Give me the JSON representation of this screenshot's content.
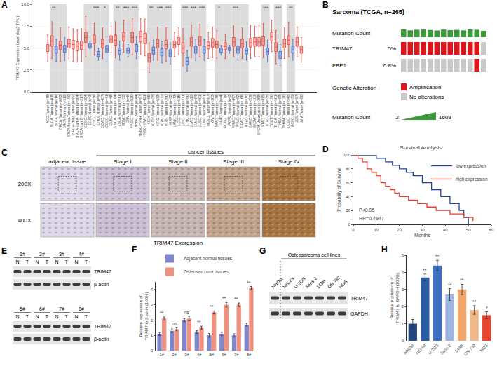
{
  "chart_data": [
    {
      "panel": "A",
      "type": "box",
      "y_label": "TRIM47 Expression Level (log2 TPM)",
      "categories": [
        "ACC.Tumor (n=79)",
        "BLCA.Tumor (n=408)",
        "BLCA.Normal (n=19)",
        "BRCA.Tumor (n=1093)",
        "BRCA.Normal (n=112)",
        "BRCA-Basal.Tumor (n=190)",
        "BRCA-Her2.Tumor (n=82)",
        "BRCA-LumA.Tumor (n=564)",
        "BRCA-LumB.Tumor (n=217)",
        "CESC.Tumor (n=304)",
        "CESC.Normal (n=3)",
        "CHOL.Tumor (n=36)",
        "CHOL.Normal (n=9)",
        "COAD.Tumor (n=457)",
        "COAD.Normal (n=41)",
        "DLBC.Tumor (n=48)",
        "ESCA.Tumor (n=184)",
        "ESCA.Normal (n=11)",
        "GBM.Tumor (n=153)",
        "GBM.Normal (n=5)",
        "HNSC.Tumor (n=520)",
        "HNSC.Normal (n=44)",
        "HNSC-HPV+.Tumor (n=97)",
        "HNSC-HPV-.Tumor (n=421)",
        "KICH.Tumor (n=66)",
        "KICH.Normal (n=25)",
        "KIRC.Tumor (n=533)",
        "KIRC.Normal (n=72)",
        "KIRP.Tumor (n=290)",
        "KIRP.Normal (n=32)",
        "LAML.Tumor (n=173)",
        "LGG.Tumor (n=516)",
        "LIHC.Tumor (n=371)",
        "LIHC.Normal (n=50)",
        "LUAD.Tumor (n=515)",
        "LUAD.Normal (n=59)",
        "LUSC.Tumor (n=501)",
        "LUSC.Normal (n=51)",
        "MESO.Tumor (n=87)",
        "OV.Tumor (n=303)",
        "PAAD.Tumor (n=178)",
        "PAAD.Normal (n=4)",
        "PCPG.Tumor (n=179)",
        "PCPG.Normal (n=3)",
        "PRAD.Tumor (n=497)",
        "PRAD.Normal (n=52)",
        "READ.Tumor (n=166)",
        "READ.Normal (n=10)",
        "SARC.Tumor (n=259)",
        "SKCM.Tumor (n=103)",
        "SKCM.Metastasis (n=368)",
        "STAD.Tumor (n=415)",
        "STAD.Normal (n=35)",
        "TGCT.Tumor (n=150)",
        "THCA.Tumor (n=501)",
        "THCA.Normal (n=59)",
        "THYM.Tumor (n=120)",
        "UCEC.Tumor (n=545)",
        "UCEC.Normal (n=35)",
        "UCS.Tumor (n=57)",
        "UVM.Tumor (n=80)"
      ],
      "lower": [
        3.5,
        3.8,
        3.5,
        3.5,
        3.6,
        3.8,
        3.5,
        3.4,
        3.5,
        4.0,
        4.8,
        4.2,
        3.6,
        3.8,
        3.5,
        4.5,
        3.9,
        3.6,
        4.5,
        4.0,
        4.2,
        3.8,
        4.3,
        4.1,
        2.2,
        3.6,
        3.6,
        3.3,
        3.5,
        3.2,
        4.0,
        4.3,
        3.0,
        2.4,
        3.9,
        3.6,
        4.0,
        3.6,
        3.8,
        3.9,
        3.8,
        4.2,
        3.8,
        4.4,
        4.0,
        3.6,
        3.8,
        3.6,
        3.8,
        4.0,
        4.0,
        3.9,
        3.4,
        4.6,
        3.2,
        3.0,
        3.8,
        4.0,
        3.6,
        4.0,
        3.4
      ],
      "q1": [
        4.6,
        5.2,
        4.4,
        4.8,
        4.5,
        5.0,
        4.9,
        4.7,
        4.8,
        5.6,
        5.0,
        5.5,
        4.0,
        5.0,
        4.5,
        5.6,
        5.3,
        4.3,
        5.8,
        4.4,
        5.6,
        4.6,
        5.7,
        5.5,
        3.4,
        4.3,
        5.0,
        4.1,
        4.9,
        4.0,
        5.0,
        5.4,
        4.4,
        3.1,
        5.2,
        4.4,
        5.3,
        4.4,
        4.9,
        5.1,
        5.0,
        4.5,
        4.8,
        4.7,
        5.2,
        4.4,
        5.0,
        4.3,
        5.1,
        5.2,
        5.2,
        5.3,
        4.2,
        5.8,
        4.6,
        3.8,
        5.0,
        5.4,
        4.4,
        5.2,
        4.4
      ],
      "median": [
        5.0,
        5.8,
        4.8,
        5.3,
        4.9,
        5.5,
        5.4,
        5.2,
        5.3,
        6.2,
        5.2,
        6.0,
        4.3,
        5.5,
        4.9,
        6.0,
        5.9,
        4.7,
        6.3,
        4.7,
        6.2,
        5.0,
        6.3,
        6.1,
        3.9,
        4.7,
        5.5,
        4.5,
        5.4,
        4.4,
        5.4,
        5.8,
        5.0,
        3.5,
        5.7,
        4.8,
        5.8,
        4.8,
        5.3,
        5.6,
        5.4,
        4.8,
        5.2,
        4.9,
        5.7,
        4.8,
        5.5,
        4.7,
        5.6,
        5.7,
        5.7,
        5.8,
        4.6,
        6.3,
        5.1,
        4.2,
        5.5,
        5.9,
        4.8,
        5.7,
        4.8
      ],
      "q3": [
        5.4,
        6.4,
        5.2,
        5.8,
        5.3,
        6.0,
        5.9,
        5.7,
        5.8,
        6.8,
        5.5,
        6.5,
        4.6,
        6.0,
        5.3,
        6.4,
        6.5,
        5.0,
        6.8,
        5.0,
        6.8,
        5.4,
        6.9,
        6.7,
        4.4,
        5.1,
        6.0,
        4.9,
        5.9,
        4.8,
        5.8,
        6.2,
        5.6,
        3.9,
        6.2,
        5.2,
        6.3,
        5.2,
        5.7,
        6.1,
        5.8,
        5.0,
        5.6,
        5.1,
        6.2,
        5.2,
        6.0,
        5.0,
        6.1,
        6.2,
        6.2,
        6.3,
        5.0,
        6.8,
        5.6,
        4.6,
        6.0,
        6.4,
        5.2,
        6.2,
        5.2
      ],
      "upper": [
        6.5,
        8.0,
        6.0,
        7.3,
        6.2,
        7.4,
        7.2,
        7.1,
        7.2,
        8.6,
        5.7,
        7.8,
        5.0,
        7.3,
        6.3,
        7.5,
        8.0,
        5.8,
        8.2,
        5.4,
        8.4,
        6.3,
        8.4,
        8.3,
        5.6,
        5.9,
        7.4,
        5.8,
        7.3,
        5.6,
        6.8,
        7.3,
        7.2,
        4.7,
        7.6,
        6.0,
        7.7,
        6.0,
        6.8,
        7.4,
        7.0,
        5.3,
        6.6,
        5.3,
        7.5,
        6.0,
        7.3,
        5.7,
        7.6,
        7.5,
        7.6,
        7.8,
        5.9,
        8.2,
        7.0,
        5.4,
        7.3,
        7.9,
        6.0,
        7.4,
        6.2
      ],
      "colors": [
        "#e8382f",
        "#e8382f",
        "#3a5fcd",
        "#e8382f",
        "#3a5fcd",
        "#e8382f",
        "#e8382f",
        "#e8382f",
        "#e8382f",
        "#e8382f",
        "#3a5fcd",
        "#e8382f",
        "#3a5fcd",
        "#e8382f",
        "#3a5fcd",
        "#e8382f",
        "#e8382f",
        "#3a5fcd",
        "#e8382f",
        "#3a5fcd",
        "#e8382f",
        "#3a5fcd",
        "#e8382f",
        "#e8382f",
        "#e8382f",
        "#3a5fcd",
        "#e8382f",
        "#3a5fcd",
        "#e8382f",
        "#3a5fcd",
        "#e8382f",
        "#e8382f",
        "#e8382f",
        "#3a5fcd",
        "#e8382f",
        "#3a5fcd",
        "#e8382f",
        "#3a5fcd",
        "#e8382f",
        "#e8382f",
        "#e8382f",
        "#3a5fcd",
        "#e8382f",
        "#3a5fcd",
        "#e8382f",
        "#3a5fcd",
        "#e8382f",
        "#3a5fcd",
        "#e8382f",
        "#e8382f",
        "#e8382f",
        "#e8382f",
        "#3a5fcd",
        "#e8382f",
        "#e8382f",
        "#3a5fcd",
        "#e8382f",
        "#e8382f",
        "#3a5fcd",
        "#e8382f",
        "#e8382f"
      ],
      "ylim": [
        0,
        10
      ],
      "yticks": [
        {
          "value": 0,
          "label": "0.0"
        },
        {
          "value": 2.5,
          "label": "2.5"
        },
        {
          "value": 5,
          "label": "5.0"
        },
        {
          "value": 7.5,
          "label": "7.5"
        },
        {
          "value": 10,
          "label": "10.0"
        }
      ],
      "grid": true,
      "annotations": [
        {
          "category": "BLCA.Tumor (n=408)",
          "text": "**"
        },
        {
          "category": "CHOL.Tumor (n=36)",
          "text": "***"
        },
        {
          "category": "COAD.Tumor (n=457)",
          "text": "*"
        },
        {
          "category": "ESCA.Tumor (n=184)",
          "text": "**"
        },
        {
          "category": "GBM.Tumor (n=153)",
          "text": "***"
        },
        {
          "category": "HNSC.Tumor (n=520)",
          "text": "***"
        },
        {
          "category": "KICH.Tumor (n=66)",
          "text": "**"
        },
        {
          "category": "KIRC.Tumor (n=533)",
          "text": "***"
        },
        {
          "category": "KIRP.Tumor (n=290)",
          "text": "***"
        },
        {
          "category": "LIHC.Tumor (n=371)",
          "text": "***"
        },
        {
          "category": "LUAD.Tumor (n=515)",
          "text": "***"
        },
        {
          "category": "LUSC.Tumor (n=501)",
          "text": "***"
        },
        {
          "category": "PAAD.Tumor (n=178)",
          "text": "*"
        },
        {
          "category": "PRAD.Tumor (n=497)",
          "text": "***"
        },
        {
          "category": "STAD.Tumor (n=415)",
          "text": "***"
        },
        {
          "category": "THCA.Tumor (n=501)",
          "text": "***"
        },
        {
          "category": "UCEC.Tumor (n=545)",
          "text": "**"
        }
      ]
    },
    {
      "panel": "D",
      "type": "line",
      "title": "Survival Analysis",
      "x_label": "Months",
      "y_label": "Probability of Survival",
      "xlim": [
        0,
        60
      ],
      "xticks": [
        0,
        10,
        20,
        30,
        40,
        50,
        60
      ],
      "ylim": [
        0,
        100
      ],
      "yticks": [
        0,
        20,
        40,
        60,
        80,
        100
      ],
      "line_style": "step",
      "legend": "top right",
      "series": [
        {
          "name": "low expression",
          "color": "#1f3f99",
          "x": [
            0,
            10,
            14,
            17,
            20,
            23,
            26,
            30,
            34,
            38,
            42,
            46,
            48,
            50
          ],
          "values": [
            100,
            95,
            90,
            85,
            80,
            75,
            70,
            60,
            50,
            40,
            30,
            20,
            10,
            0
          ]
        },
        {
          "name": "high expression",
          "color": "#e8402f",
          "x": [
            0,
            2,
            4,
            6,
            8,
            10,
            12,
            14,
            16,
            18,
            20,
            24,
            28,
            32,
            36,
            42,
            48,
            52
          ],
          "values": [
            100,
            95,
            90,
            80,
            75,
            70,
            60,
            55,
            50,
            45,
            40,
            35,
            30,
            25,
            20,
            15,
            10,
            5
          ]
        }
      ],
      "annotations": [
        {
          "text": "P<0.05"
        },
        {
          "text": "HR=0.4947"
        }
      ]
    },
    {
      "panel": "F",
      "type": "bar",
      "y_label": "Relative expression of TRIM47 to β-actin (100%)",
      "categories": [
        "1#",
        "2#",
        "3#",
        "4#",
        "5#",
        "6#",
        "7#",
        "8#"
      ],
      "series": [
        {
          "name": "Adjacent normal tissues",
          "color": "#7f86cc",
          "values": [
            1.1,
            1.3,
            2.0,
            1.2,
            1.0,
            1.1,
            1.0,
            1.7
          ],
          "errors": [
            0.1,
            0.12,
            0.1,
            0.1,
            0.12,
            0.1,
            0.1,
            0.1
          ]
        },
        {
          "name": "Osteosarcoma tissues",
          "color": "#f0907f",
          "values": [
            2.1,
            1.4,
            2.1,
            1.5,
            2.5,
            3.0,
            3.0,
            4.1
          ],
          "errors": [
            0.1,
            0.1,
            0.15,
            0.1,
            0.1,
            0.15,
            0.12,
            0.1
          ]
        }
      ],
      "ylim": [
        0,
        4.5
      ],
      "yticks": [
        0,
        1,
        2,
        3,
        4
      ],
      "legend": "top",
      "annotations": [
        {
          "category": "1#",
          "text": "**"
        },
        {
          "category": "2#",
          "text": "ns"
        },
        {
          "category": "3#",
          "text": "ns"
        },
        {
          "category": "4#",
          "text": "**"
        },
        {
          "category": "5#",
          "text": "**"
        },
        {
          "category": "6#",
          "text": "**"
        },
        {
          "category": "7#",
          "text": "**"
        },
        {
          "category": "8#",
          "text": "**"
        }
      ]
    },
    {
      "panel": "H",
      "type": "bar",
      "y_label": "Relative expression of TRIM47 to GAPDH (100%)",
      "categories": [
        "NHOst",
        "MG-63",
        "U-2OS",
        "Saos-2",
        "143B",
        "OS-732",
        "HOS"
      ],
      "values": [
        1.0,
        3.7,
        4.4,
        2.7,
        3.0,
        1.8,
        1.5
      ],
      "errors": [
        0.25,
        0.2,
        0.3,
        0.35,
        0.3,
        0.25,
        0.2
      ],
      "colors": [
        "#24467f",
        "#2e5da8",
        "#3d6fc2",
        "#9db5e3",
        "#f2a66a",
        "#f0b98c",
        "#e8452f"
      ],
      "ylim": [
        0,
        5
      ],
      "yticks": [
        0,
        1,
        2,
        3,
        4,
        5
      ],
      "annotations": [
        {
          "category": "MG-63",
          "text": "**"
        },
        {
          "category": "U-2OS",
          "text": "**"
        },
        {
          "category": "Saos-2",
          "text": "**"
        },
        {
          "category": "143B",
          "text": "**"
        },
        {
          "category": "OS-732",
          "text": "**"
        },
        {
          "category": "HOS",
          "text": "*"
        }
      ]
    }
  ],
  "oncoprint": {
    "panel": "B",
    "title": "Sarcoma (TCGA, n=265)",
    "mutation": {
      "label": "Mutation Count",
      "color": "#3a9a3a",
      "values": [
        45,
        30,
        38,
        42,
        35,
        28,
        40,
        33,
        36,
        30,
        44,
        38,
        25
      ],
      "scale": {
        "min": 2,
        "max": 1603
      }
    },
    "genes": [
      {
        "name": "TRIM47",
        "altered": "5%",
        "alterations": [
          "Amplification",
          "Amplification",
          "Amplification",
          "Amplification",
          "Amplification",
          "Amplification",
          "Amplification",
          "Amplification",
          "Amplification",
          "Amplification",
          "Amplification",
          "Amplification",
          "No alterations"
        ]
      },
      {
        "name": "FBP1",
        "altered": "0.8%",
        "alterations": [
          "No alterations",
          "No alterations",
          "No alterations",
          "No alterations",
          "No alterations",
          "No alterations",
          "No alterations",
          "No alterations",
          "No alterations",
          "No alterations",
          "No alterations",
          "Amplification",
          "No alterations"
        ]
      }
    ],
    "legend_title": "Genetic Alteration",
    "legend_items": [
      {
        "label": "Amplification",
        "color": "#e0141b"
      },
      {
        "label": "No alterations",
        "color": "#c8c8c8"
      }
    ]
  },
  "ihc": {
    "panel": "C",
    "group": "cancer tissues",
    "columns": [
      "adjacent tissue",
      "Stage I",
      "Stage II",
      "Stage III",
      "Stage IV"
    ],
    "colors": [
      "#ddd7e7",
      "#cbbfd3",
      "#c8b6b3",
      "#c2a48a",
      "#a8743f"
    ],
    "rows": [
      "200X",
      "400X"
    ],
    "caption": "TRIM47 Expression"
  },
  "tissue_blots": {
    "panel": "E",
    "samples": [
      "1#",
      "2#",
      "3#",
      "4#",
      "5#",
      "6#",
      "7#",
      "8#"
    ],
    "lanes": [
      "N",
      "T"
    ],
    "bands": [
      "TRIM47",
      "β-actin"
    ]
  },
  "cell_blots": {
    "panel": "G",
    "group": "Osteosarcoma cell lines",
    "lanes": [
      "NHOst",
      "MG-63",
      "U-2OS",
      "Saos-2",
      "143B",
      "OS-732",
      "HOS"
    ],
    "bands": [
      "TRIM47",
      "GAPDH"
    ]
  }
}
